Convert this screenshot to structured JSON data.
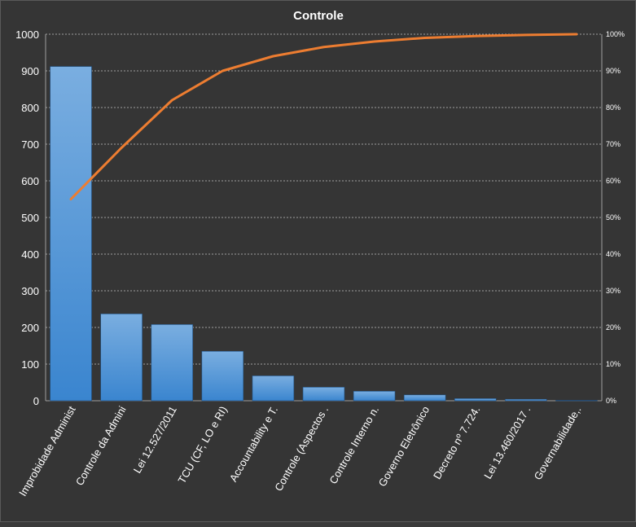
{
  "chart_data": {
    "type": "bar",
    "title": "Controle",
    "categories": [
      "Improbidade Administ",
      "Controle da Admini",
      "Lei 12.527/2011",
      "TCU (CF, LO e RI)",
      "Accountability e T.",
      "Controle (Aspectos .",
      "Controle Interno n.",
      "Governo Eletrônico",
      "Decreto nº 7.724.",
      "Lei 13.460/2017  .",
      "Governabilidade,."
    ],
    "series": [
      {
        "type": "bar",
        "values": [
          912,
          237,
          208,
          135,
          68,
          37,
          26,
          16,
          6,
          4,
          1
        ]
      },
      {
        "type": "line",
        "axis": "right",
        "values": [
          0.55,
          0.69,
          0.82,
          0.9,
          0.94,
          0.965,
          0.98,
          0.99,
          0.995,
          0.998,
          1.0
        ]
      }
    ],
    "ylim": [
      0,
      1000
    ],
    "yticks": [
      0,
      100,
      200,
      300,
      400,
      500,
      600,
      700,
      800,
      900,
      1000
    ],
    "y2lim": [
      0,
      1
    ],
    "y2ticks": [
      "0%",
      "10%",
      "20%",
      "30%",
      "40%",
      "50%",
      "60%",
      "70%",
      "80%",
      "90%",
      "100%"
    ],
    "grid": true,
    "colors": {
      "background": "#353535",
      "bar_top": "#7aaee0",
      "bar_bottom": "#3a85cf",
      "line": "#ed7d31",
      "grid": "#a0a0a0"
    }
  }
}
